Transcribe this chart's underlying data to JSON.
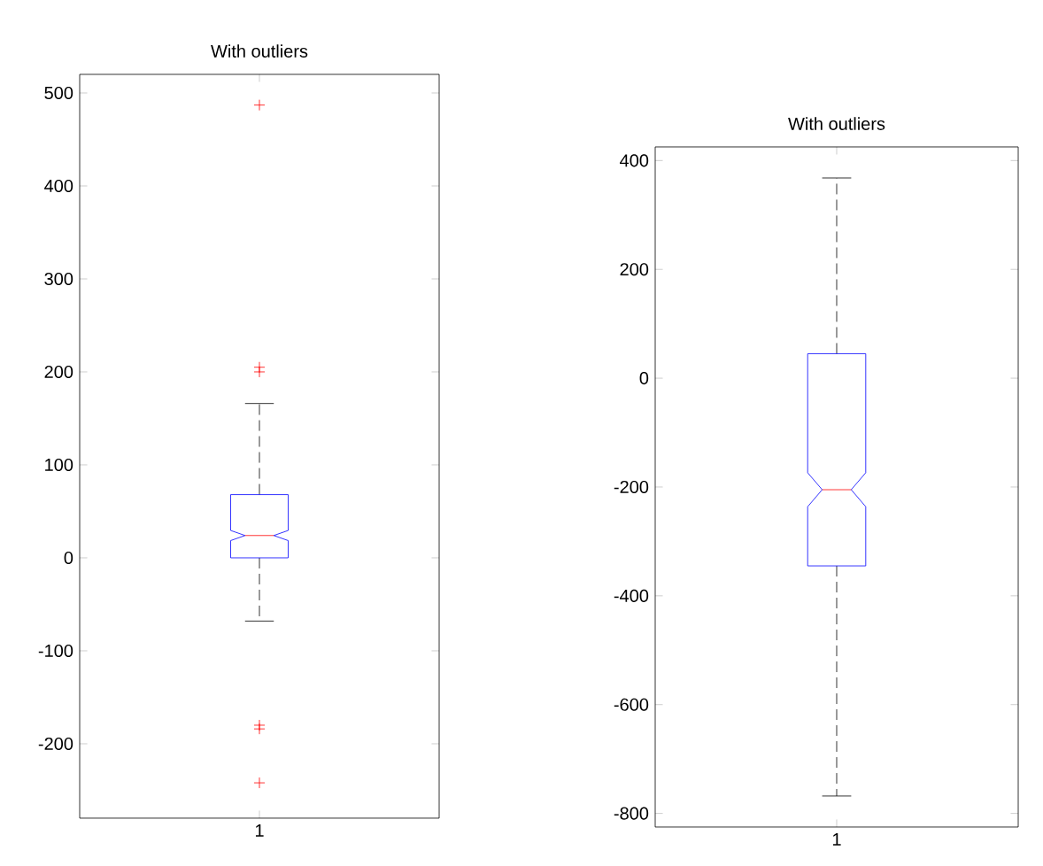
{
  "chart_data": [
    {
      "type": "box",
      "title": "With outliers",
      "categories": [
        "1"
      ],
      "color": "#0000ff",
      "marker": "cross",
      "line_style": "dashed",
      "ylim": [
        -280,
        520
      ],
      "yticks": [
        -200,
        -100,
        0,
        100,
        200,
        300,
        400,
        500
      ],
      "boxes": [
        {
          "low": -68,
          "q1": 0,
          "median": 24,
          "q3": 68,
          "high": 166,
          "outliers": [
            487,
            205,
            200,
            -180,
            -184,
            -242
          ]
        }
      ]
    },
    {
      "type": "box",
      "title": "With outliers",
      "categories": [
        "1"
      ],
      "color": "#0000ff",
      "line_style": "dashed",
      "ylim": [
        -825,
        425
      ],
      "yticks": [
        -800,
        -600,
        -400,
        -200,
        0,
        200,
        400
      ],
      "boxes": [
        {
          "low": -768,
          "q1": -345,
          "median": -205,
          "q3": 45,
          "high": 368
        }
      ]
    }
  ]
}
